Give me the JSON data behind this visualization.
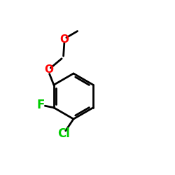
{
  "background": "#1a1a00",
  "bg_actual": "#000000",
  "bond_color": "#000000",
  "atom_colors": {
    "O": "#ff0000",
    "F": "#00cc00",
    "Cl": "#00cc00",
    "C": "#000000"
  },
  "bond_width": 2.0,
  "font_size": 11,
  "figsize": [
    2.5,
    2.5
  ],
  "dpi": 100
}
